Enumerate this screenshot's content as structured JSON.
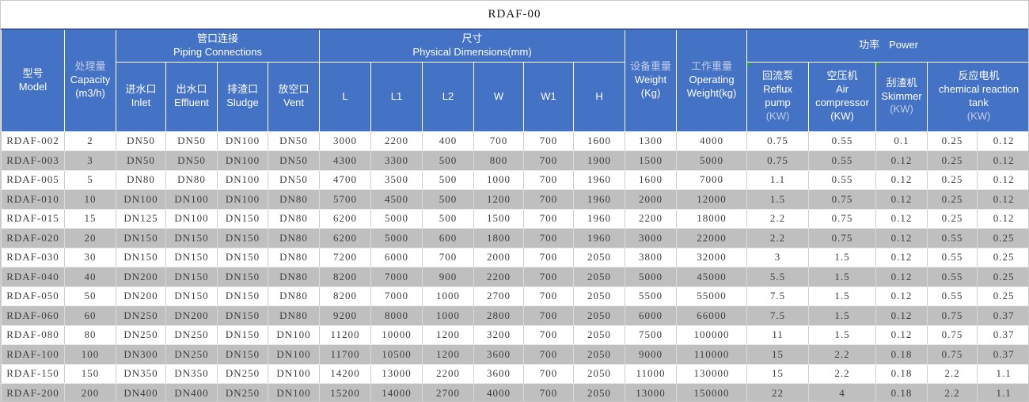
{
  "title": "RDAF-00",
  "colors": {
    "header_bg": "#4472c4",
    "header_text": "#ffffff",
    "header_muted_text": "#c3cde8",
    "row_white": "#ffffff",
    "row_gray": "#bfbfbf",
    "body_text": "#3d3d3d",
    "flag_green": "#2f9e3b",
    "outer_border": "#c8c8c8"
  },
  "header": {
    "model": {
      "zh": "型号",
      "en": "Model"
    },
    "capacity": {
      "zh": "处理量",
      "en": "Capacity",
      "unit": "(m3/h)"
    },
    "piping": {
      "zh": "管口连接",
      "en": "Piping Connections"
    },
    "piping_cols": [
      {
        "zh": "进水口",
        "en": "Inlet"
      },
      {
        "zh": "出水口",
        "en": "Effluent"
      },
      {
        "zh": "排渣口",
        "en": "Sludge"
      },
      {
        "zh": "放空口",
        "en": "Vent"
      }
    ],
    "dimensions": {
      "zh": "尺寸",
      "en": "Physical Dimensions(mm)"
    },
    "dimension_cols": [
      "L",
      "L1",
      "L2",
      "W",
      "W1",
      "H"
    ],
    "weight": {
      "zh": "设备重量",
      "en": "Weight",
      "unit": "(Kg)"
    },
    "operating_weight": {
      "zh": "工作重量",
      "en": "Operating Weight(kg)"
    },
    "power": {
      "zh": "功率",
      "en": "Power"
    },
    "power_cols": [
      {
        "zh": "回流泵",
        "en": "Reflux pump",
        "kw": "(KW)"
      },
      {
        "zh": "空压机",
        "en": "Air compressor",
        "kw": "(KW)"
      },
      {
        "zh": "刮渣机",
        "en": "Skimmer",
        "kw": "(KW)"
      },
      {
        "zh": "反应电机",
        "en": "chemical reaction tank",
        "kw": "(KW)"
      }
    ]
  },
  "table": {
    "column_keys": [
      "model",
      "capacity",
      "inlet",
      "effluent",
      "sludge",
      "vent",
      "L",
      "L1",
      "L2",
      "W",
      "W1",
      "H",
      "weight",
      "operating-weight",
      "reflux-pump",
      "air-compressor",
      "skimmer",
      "reaction-tank-1",
      "reaction-tank-2"
    ],
    "rows": [
      [
        "RDAF-002",
        "2",
        "DN50",
        "DN50",
        "DN100",
        "DN50",
        "3000",
        "2200",
        "400",
        "700",
        "700",
        "1600",
        "1300",
        "4000",
        "0.75",
        "0.55",
        "0.1",
        "0.25",
        "0.12"
      ],
      [
        "RDAF-003",
        "3",
        "DN50",
        "DN50",
        "DN100",
        "DN50",
        "4300",
        "3300",
        "500",
        "800",
        "700",
        "1900",
        "1500",
        "5000",
        "0.75",
        "0.55",
        "0.12",
        "0.25",
        "0.12"
      ],
      [
        "RDAF-005",
        "5",
        "DN80",
        "DN80",
        "DN100",
        "DN50",
        "4700",
        "3500",
        "500",
        "1000",
        "700",
        "1960",
        "1600",
        "7000",
        "1.1",
        "0.55",
        "0.12",
        "0.25",
        "0.12"
      ],
      [
        "RDAF-010",
        "10",
        "DN100",
        "DN100",
        "DN100",
        "DN80",
        "5700",
        "4500",
        "500",
        "1200",
        "700",
        "1960",
        "2000",
        "12000",
        "1.5",
        "0.75",
        "0.12",
        "0.25",
        "0.12"
      ],
      [
        "RDAF-015",
        "15",
        "DN125",
        "DN100",
        "DN150",
        "DN80",
        "6200",
        "5000",
        "500",
        "1500",
        "700",
        "1960",
        "2200",
        "18000",
        "2.2",
        "0.75",
        "0.12",
        "0.25",
        "0.12"
      ],
      [
        "RDAF-020",
        "20",
        "DN150",
        "DN150",
        "DN150",
        "DN80",
        "6200",
        "5000",
        "600",
        "1800",
        "700",
        "1960",
        "3000",
        "22000",
        "2.2",
        "0.75",
        "0.12",
        "0.55",
        "0.25"
      ],
      [
        "RDAF-030",
        "30",
        "DN150",
        "DN150",
        "DN150",
        "DN80",
        "7200",
        "6000",
        "700",
        "2000",
        "700",
        "2050",
        "3800",
        "32000",
        "3",
        "1.5",
        "0.12",
        "0.55",
        "0.25"
      ],
      [
        "RDAF-040",
        "40",
        "DN200",
        "DN150",
        "DN150",
        "DN80",
        "8200",
        "7000",
        "900",
        "2200",
        "700",
        "2050",
        "5000",
        "45000",
        "5.5",
        "1.5",
        "0.12",
        "0.55",
        "0.25"
      ],
      [
        "RDAF-050",
        "50",
        "DN200",
        "DN150",
        "DN150",
        "DN80",
        "8200",
        "7000",
        "1000",
        "2700",
        "700",
        "2050",
        "5500",
        "55000",
        "7.5",
        "1.5",
        "0.12",
        "0.55",
        "0.25"
      ],
      [
        "RDAF-060",
        "60",
        "DN250",
        "DN200",
        "DN150",
        "DN80",
        "9200",
        "8000",
        "1000",
        "2800",
        "700",
        "2050",
        "6000",
        "66000",
        "7.5",
        "1.5",
        "0.12",
        "0.75",
        "0.37"
      ],
      [
        "RDAF-080",
        "80",
        "DN250",
        "DN250",
        "DN150",
        "DN100",
        "11200",
        "10000",
        "1200",
        "3200",
        "700",
        "2050",
        "7500",
        "100000",
        "11",
        "1.5",
        "0.12",
        "0.75",
        "0.37"
      ],
      [
        "RDAF-100",
        "100",
        "DN300",
        "DN250",
        "DN150",
        "DN100",
        "11700",
        "10500",
        "1200",
        "3600",
        "700",
        "2050",
        "9000",
        "110000",
        "15",
        "2.2",
        "0.18",
        "0.75",
        "0.37"
      ],
      [
        "RDAF-150",
        "150",
        "DN350",
        "DN350",
        "DN250",
        "DN100",
        "14200",
        "13000",
        "2200",
        "3600",
        "700",
        "2050",
        "11000",
        "130000",
        "15",
        "2.2",
        "0.18",
        "2.2",
        "1.1"
      ],
      [
        "RDAF-200",
        "200",
        "DN400",
        "DN400",
        "DN250",
        "DN100",
        "15200",
        "14000",
        "2700",
        "4000",
        "700",
        "2050",
        "13000",
        "150000",
        "22",
        "4",
        "0.18",
        "2.2",
        "1.1"
      ]
    ]
  }
}
